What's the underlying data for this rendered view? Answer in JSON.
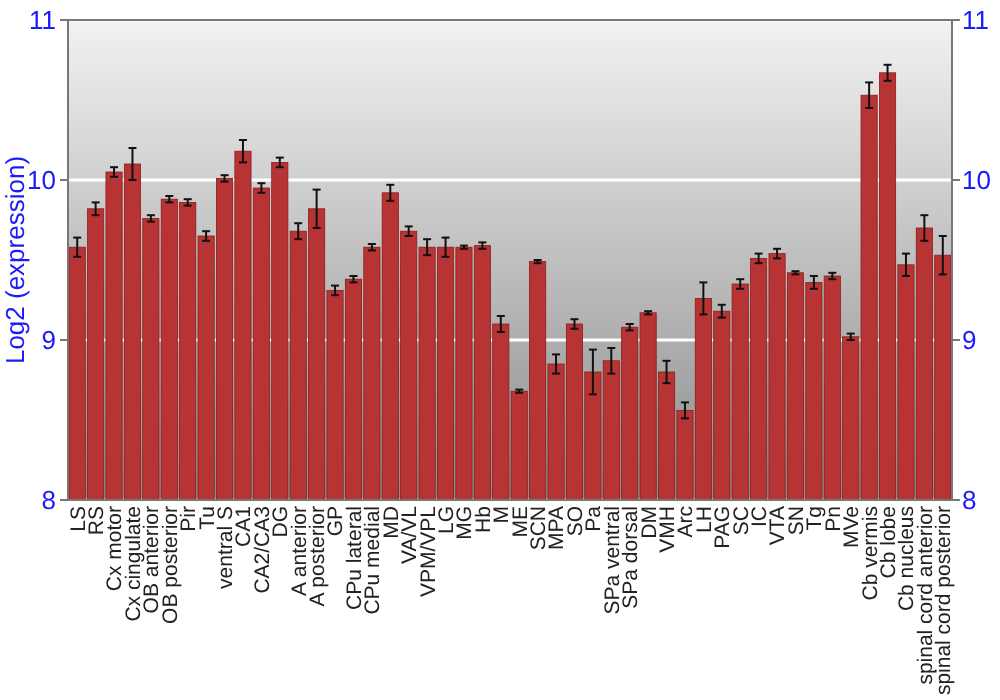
{
  "chart_data": {
    "type": "bar",
    "ylabel": "Log2 (expression)",
    "categories": [
      "LS",
      "RS",
      "Cx motor",
      "Cx cingulate",
      "OB anterior",
      "OB posterior",
      "Pir",
      "Tu",
      "ventral S",
      "CA1",
      "CA2/CA3",
      "DG",
      "A anterior",
      "A posterior",
      "GP",
      "CPu lateral",
      "CPu medial",
      "MD",
      "VA/VL",
      "VPM/VPL",
      "LG",
      "MG",
      "Hb",
      "M",
      "ME",
      "SCN",
      "MPA",
      "SO",
      "Pa",
      "SPa ventral",
      "SPa dorsal",
      "DM",
      "VMH",
      "Arc",
      "LH",
      "PAG",
      "SC",
      "IC",
      "VTA",
      "SN",
      "Tg",
      "Pn",
      "MVe",
      "Cb vermis",
      "Cb lobe",
      "Cb nucleus",
      "spinal cord anterior",
      "spinal cord posterior"
    ],
    "values": [
      9.58,
      9.82,
      10.05,
      10.1,
      9.76,
      9.88,
      9.86,
      9.65,
      10.01,
      10.18,
      9.95,
      10.11,
      9.68,
      9.82,
      9.31,
      9.38,
      9.58,
      9.92,
      9.68,
      9.58,
      9.58,
      9.58,
      9.59,
      9.1,
      8.68,
      9.49,
      8.85,
      9.1,
      8.8,
      8.87,
      9.08,
      9.17,
      8.8,
      8.56,
      9.26,
      9.18,
      9.35,
      9.51,
      9.54,
      9.42,
      9.36,
      9.4,
      9.02,
      10.53,
      10.67,
      9.47,
      9.7,
      9.53
    ],
    "errors": [
      0.06,
      0.04,
      0.03,
      0.1,
      0.02,
      0.02,
      0.02,
      0.03,
      0.02,
      0.07,
      0.03,
      0.03,
      0.05,
      0.12,
      0.03,
      0.02,
      0.02,
      0.05,
      0.03,
      0.05,
      0.06,
      0.01,
      0.02,
      0.05,
      0.01,
      0.01,
      0.06,
      0.03,
      0.14,
      0.08,
      0.02,
      0.01,
      0.07,
      0.05,
      0.1,
      0.04,
      0.03,
      0.03,
      0.03,
      0.01,
      0.04,
      0.02,
      0.02,
      0.08,
      0.05,
      0.07,
      0.08,
      0.12
    ],
    "color": "#b83434",
    "ylim": [
      8,
      11
    ],
    "yticks": [
      8,
      9,
      10,
      11
    ],
    "y2lim": [
      8,
      11
    ],
    "y2ticks": [
      8,
      9,
      10,
      11
    ],
    "grid": "y"
  }
}
